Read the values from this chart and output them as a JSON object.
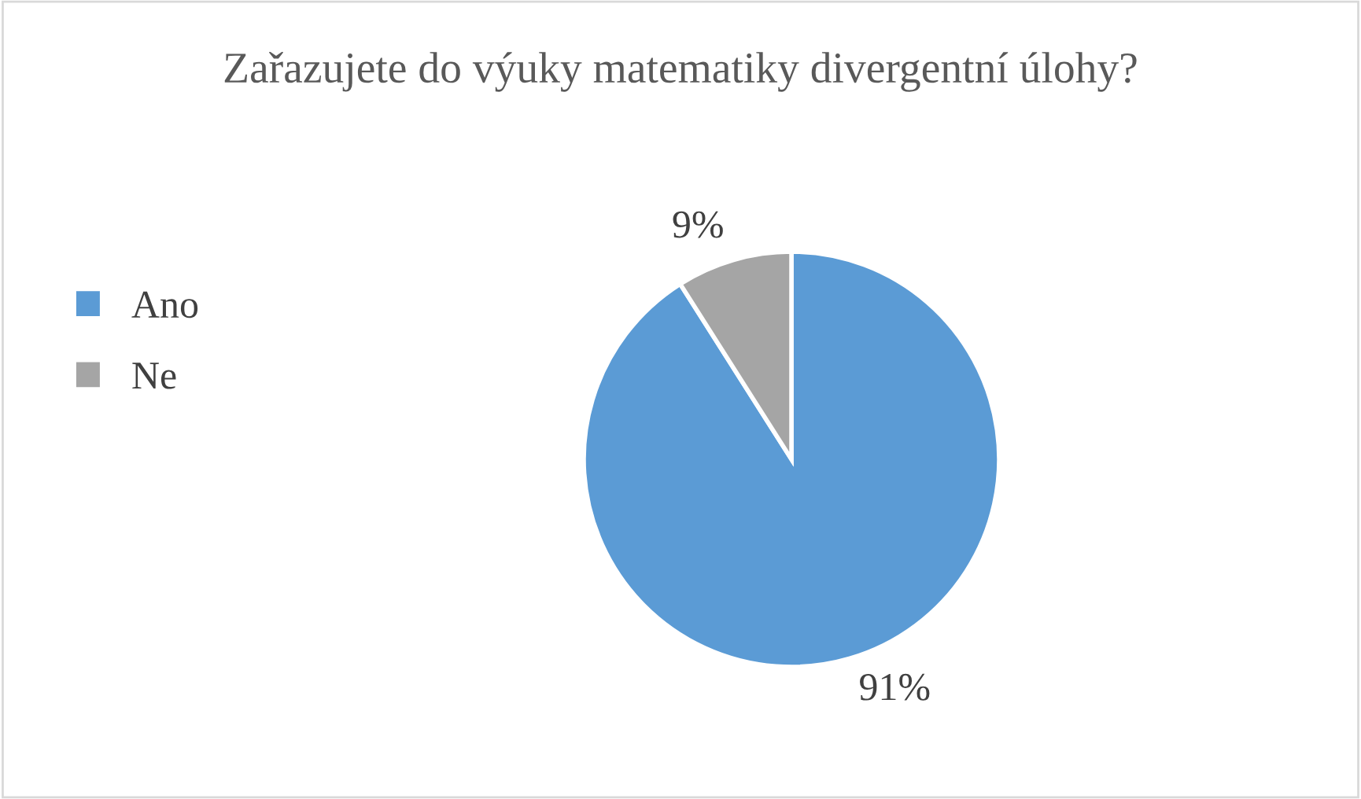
{
  "chart_data": {
    "type": "pie",
    "title": "Zařazujete do výuky matematiky divergentní úlohy?",
    "categories": [
      "Ano",
      "Ne"
    ],
    "values": [
      91,
      9
    ],
    "colors": [
      "#5b9bd5",
      "#a5a5a5"
    ],
    "value_labels": [
      "91%",
      "9%"
    ],
    "legend": "left"
  }
}
